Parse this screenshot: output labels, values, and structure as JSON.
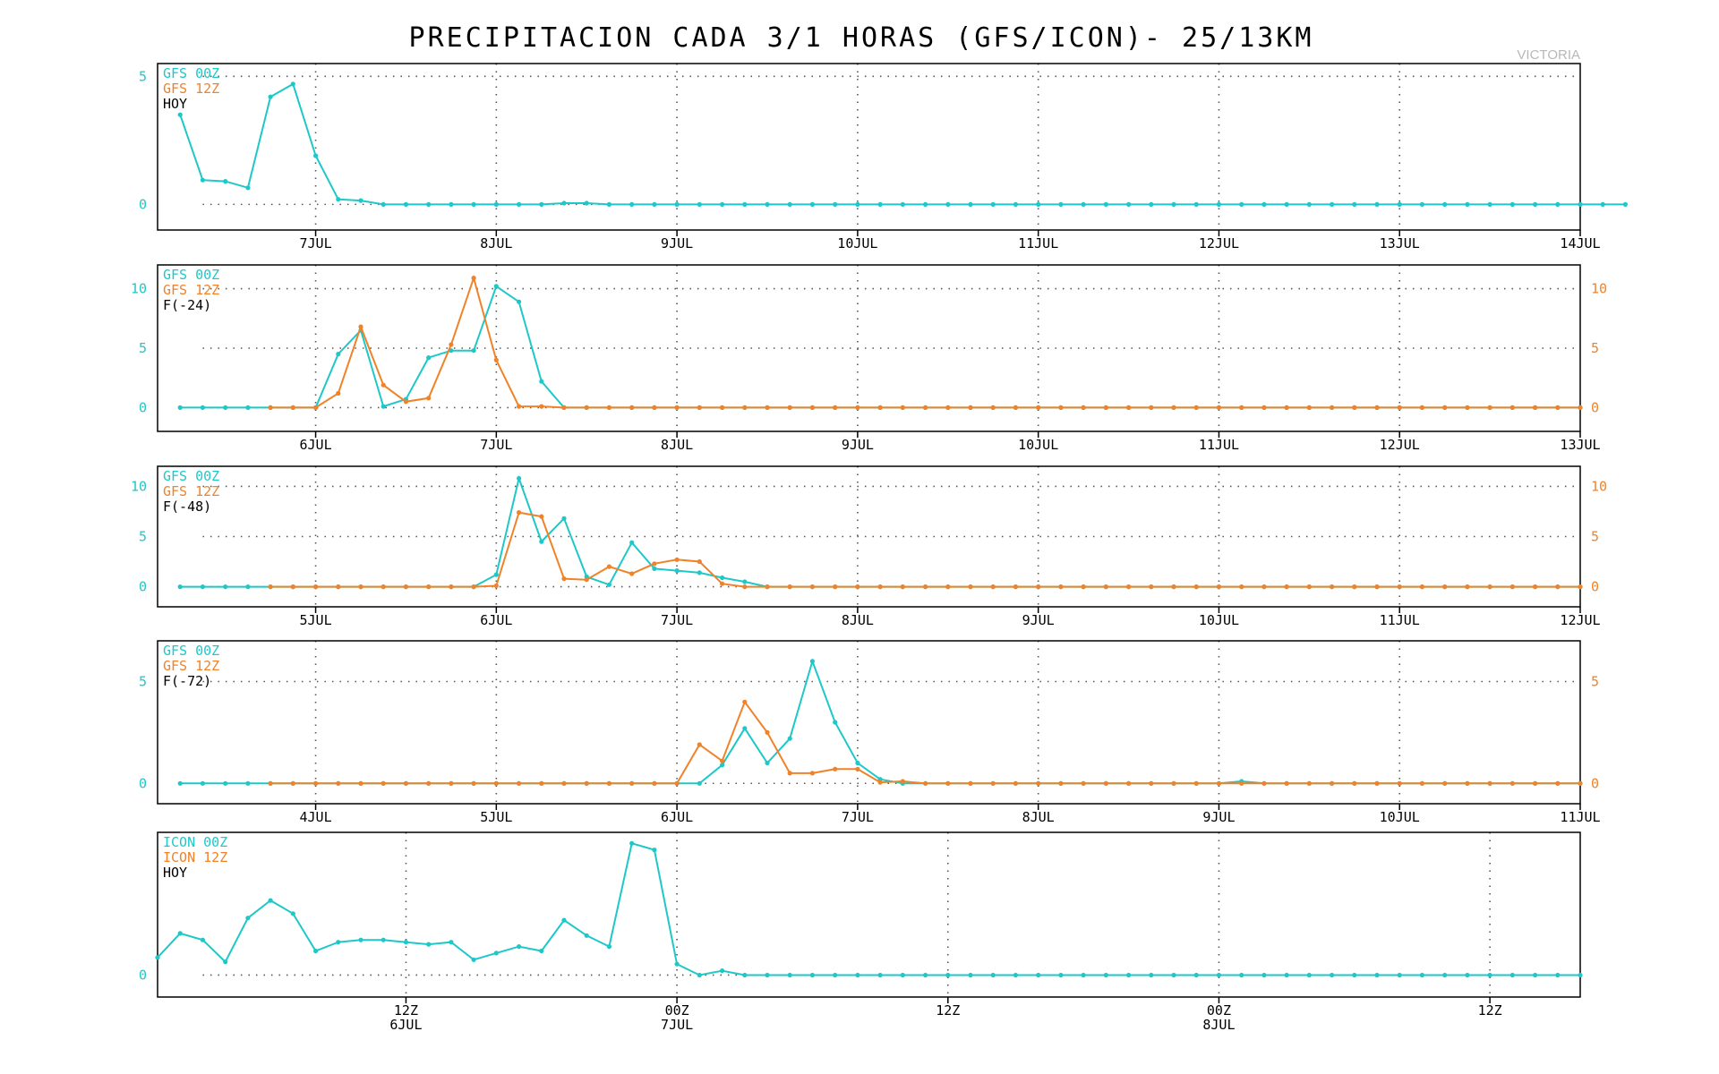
{
  "title": "PRECIPITACION CADA 3/1 HORAS (GFS/ICON)- 25/13KM",
  "station": "VICTORIA",
  "colors": {
    "series_a": "#1ec8c8",
    "series_b": "#f08228",
    "text": "#000000"
  },
  "chart_data": [
    {
      "type": "line",
      "legend": [
        "GFS 00Z",
        "GFS 12Z",
        "HOY"
      ],
      "x_unit": "day offset from 7JUL 00Z (3-hour steps)",
      "xlim": [
        -0.875,
        7
      ],
      "ylim": [
        -1,
        5.5
      ],
      "yticks_left": [
        0,
        5
      ],
      "yticks_right": [],
      "xticks": [
        {
          "x": 0,
          "label": "7JUL"
        },
        {
          "x": 1,
          "label": "8JUL"
        },
        {
          "x": 2,
          "label": "9JUL"
        },
        {
          "x": 3,
          "label": "10JUL"
        },
        {
          "x": 4,
          "label": "11JUL"
        },
        {
          "x": 5,
          "label": "12JUL"
        },
        {
          "x": 6,
          "label": "13JUL"
        },
        {
          "x": 7,
          "label": "14JUL"
        }
      ],
      "xgrid": [
        0,
        1,
        2,
        3,
        4,
        5,
        6
      ],
      "series": [
        {
          "name": "GFS 00Z",
          "color": "series_a",
          "x0": -0.75,
          "dx": 0.125,
          "values": [
            3.5,
            0.95,
            0.9,
            0.65,
            4.2,
            4.7,
            1.9,
            0.2,
            0.15,
            0,
            0,
            0,
            0,
            0,
            0,
            0,
            0,
            0.05,
            0.05,
            0,
            0,
            0,
            0,
            0,
            0,
            0,
            0,
            0,
            0,
            0,
            0,
            0,
            0,
            0,
            0,
            0,
            0,
            0,
            0,
            0,
            0,
            0,
            0,
            0,
            0,
            0,
            0,
            0,
            0,
            0,
            0,
            0,
            0,
            0,
            0,
            0,
            0,
            0,
            0,
            0,
            0,
            0,
            0,
            0,
            0
          ]
        }
      ]
    },
    {
      "type": "line",
      "legend": [
        "GFS 00Z",
        "GFS 12Z",
        "F(-24)"
      ],
      "x_unit": "day offset from 6JUL 00Z (3-hour steps)",
      "xlim": [
        -0.875,
        7
      ],
      "ylim": [
        -2,
        12
      ],
      "yticks_left": [
        0,
        5,
        10
      ],
      "yticks_right": [
        0,
        5,
        10
      ],
      "xticks": [
        {
          "x": 0,
          "label": "6JUL"
        },
        {
          "x": 1,
          "label": "7JUL"
        },
        {
          "x": 2,
          "label": "8JUL"
        },
        {
          "x": 3,
          "label": "9JUL"
        },
        {
          "x": 4,
          "label": "10JUL"
        },
        {
          "x": 5,
          "label": "11JUL"
        },
        {
          "x": 6,
          "label": "12JUL"
        },
        {
          "x": 7,
          "label": "13JUL"
        }
      ],
      "xgrid": [
        0,
        1,
        2,
        3,
        4,
        5,
        6
      ],
      "series": [
        {
          "name": "GFS 00Z",
          "color": "series_a",
          "x0": -0.75,
          "dx": 0.125,
          "values": [
            0,
            0,
            0,
            0,
            0,
            0,
            0,
            4.5,
            6.5,
            0.1,
            0.7,
            4.2,
            4.8,
            4.8,
            10.2,
            8.9,
            2.2,
            0,
            0,
            0,
            0,
            0,
            0,
            0,
            0,
            0,
            0,
            0,
            0,
            0,
            0,
            0,
            0,
            0,
            0,
            0,
            0,
            0,
            0,
            0,
            0,
            0,
            0,
            0,
            0,
            0,
            0,
            0,
            0,
            0,
            0,
            0,
            0,
            0,
            0,
            0,
            0,
            0,
            0,
            0,
            0,
            0,
            0
          ]
        },
        {
          "name": "GFS 12Z",
          "color": "series_b",
          "x0": -0.25,
          "dx": 0.125,
          "values": [
            0,
            0,
            0,
            1.2,
            6.8,
            1.9,
            0.5,
            0.8,
            5.3,
            10.9,
            4.0,
            0.1,
            0.1,
            0,
            0,
            0,
            0,
            0,
            0,
            0,
            0,
            0,
            0,
            0,
            0,
            0,
            0,
            0,
            0,
            0,
            0,
            0,
            0,
            0,
            0,
            0,
            0,
            0,
            0,
            0,
            0,
            0,
            0,
            0,
            0,
            0,
            0,
            0,
            0,
            0,
            0,
            0,
            0,
            0,
            0,
            0,
            0,
            0,
            0
          ]
        }
      ]
    },
    {
      "type": "line",
      "legend": [
        "GFS 00Z",
        "GFS 12Z",
        "F(-48)"
      ],
      "x_unit": "day offset from 5JUL 00Z (3-hour steps)",
      "xlim": [
        -0.875,
        7
      ],
      "ylim": [
        -2,
        12
      ],
      "yticks_left": [
        0,
        5,
        10
      ],
      "yticks_right": [
        0,
        5,
        10
      ],
      "xticks": [
        {
          "x": 0,
          "label": "5JUL"
        },
        {
          "x": 1,
          "label": "6JUL"
        },
        {
          "x": 2,
          "label": "7JUL"
        },
        {
          "x": 3,
          "label": "8JUL"
        },
        {
          "x": 4,
          "label": "9JUL"
        },
        {
          "x": 5,
          "label": "10JUL"
        },
        {
          "x": 6,
          "label": "11JUL"
        },
        {
          "x": 7,
          "label": "12JUL"
        }
      ],
      "xgrid": [
        0,
        1,
        2,
        3,
        4,
        5,
        6
      ],
      "series": [
        {
          "name": "GFS 00Z",
          "color": "series_a",
          "x0": -0.75,
          "dx": 0.125,
          "values": [
            0,
            0,
            0,
            0,
            0,
            0,
            0,
            0,
            0,
            0,
            0,
            0,
            0,
            0,
            1.2,
            10.8,
            4.5,
            6.8,
            1.0,
            0.2,
            4.4,
            1.8,
            1.6,
            1.4,
            0.9,
            0.5,
            0,
            0,
            0,
            0,
            0,
            0,
            0,
            0,
            0,
            0,
            0,
            0,
            0,
            0,
            0,
            0,
            0,
            0,
            0,
            0,
            0,
            0,
            0,
            0,
            0,
            0,
            0,
            0,
            0,
            0,
            0,
            0,
            0,
            0,
            0,
            0,
            0
          ]
        },
        {
          "name": "GFS 12Z",
          "color": "series_b",
          "x0": -0.25,
          "dx": 0.125,
          "values": [
            0,
            0,
            0,
            0,
            0,
            0,
            0,
            0,
            0,
            0,
            0.1,
            7.4,
            7.0,
            0.8,
            0.7,
            2.0,
            1.3,
            2.3,
            2.7,
            2.5,
            0.3,
            0,
            0,
            0,
            0,
            0,
            0,
            0,
            0,
            0,
            0,
            0,
            0,
            0,
            0,
            0,
            0,
            0,
            0,
            0,
            0,
            0,
            0,
            0,
            0,
            0,
            0,
            0,
            0,
            0,
            0,
            0,
            0,
            0,
            0,
            0,
            0,
            0,
            0
          ]
        }
      ]
    },
    {
      "type": "line",
      "legend": [
        "GFS 00Z",
        "GFS 12Z",
        "F(-72)"
      ],
      "x_unit": "day offset from 4JUL 00Z (3-hour steps)",
      "xlim": [
        -0.875,
        7
      ],
      "ylim": [
        -1,
        7
      ],
      "yticks_left": [
        0,
        5
      ],
      "yticks_right": [
        0,
        5
      ],
      "xticks": [
        {
          "x": 0,
          "label": "4JUL"
        },
        {
          "x": 1,
          "label": "5JUL"
        },
        {
          "x": 2,
          "label": "6JUL"
        },
        {
          "x": 3,
          "label": "7JUL"
        },
        {
          "x": 4,
          "label": "8JUL"
        },
        {
          "x": 5,
          "label": "9JUL"
        },
        {
          "x": 6,
          "label": "10JUL"
        },
        {
          "x": 7,
          "label": "11JUL"
        }
      ],
      "xgrid": [
        0,
        1,
        2,
        3,
        4,
        5,
        6
      ],
      "series": [
        {
          "name": "GFS 00Z",
          "color": "series_a",
          "x0": -0.75,
          "dx": 0.125,
          "values": [
            0,
            0,
            0,
            0,
            0,
            0,
            0,
            0,
            0,
            0,
            0,
            0,
            0,
            0,
            0,
            0,
            0,
            0,
            0,
            0,
            0,
            0,
            0,
            0,
            0.9,
            2.7,
            1.0,
            2.2,
            6.0,
            3.0,
            1.0,
            0.2,
            0,
            0,
            0,
            0,
            0,
            0,
            0,
            0,
            0,
            0,
            0,
            0,
            0,
            0,
            0,
            0.1,
            0,
            0,
            0,
            0,
            0,
            0,
            0,
            0,
            0,
            0,
            0,
            0,
            0,
            0,
            0
          ]
        },
        {
          "name": "GFS 12Z",
          "color": "series_b",
          "x0": -0.25,
          "dx": 0.125,
          "values": [
            0,
            0,
            0,
            0,
            0,
            0,
            0,
            0,
            0,
            0,
            0,
            0,
            0,
            0,
            0,
            0,
            0,
            0,
            0,
            1.9,
            1.1,
            4.0,
            2.5,
            0.5,
            0.5,
            0.7,
            0.7,
            0.05,
            0.1,
            0,
            0,
            0,
            0,
            0,
            0,
            0,
            0,
            0,
            0,
            0,
            0,
            0,
            0,
            0,
            0,
            0,
            0,
            0,
            0,
            0,
            0,
            0,
            0,
            0,
            0,
            0,
            0,
            0,
            0
          ]
        }
      ]
    },
    {
      "type": "line",
      "legend": [
        "ICON 00Z",
        "ICON 12Z",
        "HOY"
      ],
      "x_unit": "hours from 7JUL 00Z (1-hour steps)",
      "xlim": [
        -23,
        40
      ],
      "ylim": [
        -1,
        6.5
      ],
      "yticks_left": [
        0
      ],
      "yticks_right": [],
      "xticks": [
        {
          "x": -12,
          "label": "12Z",
          "sub": "6JUL"
        },
        {
          "x": 0,
          "label": "00Z",
          "sub": "7JUL"
        },
        {
          "x": 12,
          "label": "12Z",
          "sub": ""
        },
        {
          "x": 24,
          "label": "00Z",
          "sub": "8JUL"
        },
        {
          "x": 36,
          "label": "12Z",
          "sub": ""
        }
      ],
      "xgrid": [
        -12,
        0,
        12,
        24,
        36
      ],
      "series": [
        {
          "name": "ICON 00Z",
          "color": "series_a",
          "x0": -23,
          "dx": 1,
          "values": [
            0.8,
            1.9,
            1.6,
            0.6,
            2.6,
            3.4,
            2.8,
            1.1,
            1.5,
            1.6,
            1.6,
            1.5,
            1.4,
            1.5,
            0.7,
            1.0,
            1.3,
            1.1,
            2.5,
            1.8,
            1.3,
            6.0,
            5.7,
            0.5,
            0,
            0.2,
            0,
            0,
            0,
            0,
            0,
            0,
            0,
            0,
            0,
            0,
            0,
            0,
            0,
            0,
            0,
            0,
            0,
            0,
            0,
            0,
            0,
            0,
            0,
            0,
            0,
            0,
            0,
            0,
            0,
            0,
            0,
            0,
            0,
            0,
            0,
            0,
            0,
            0
          ]
        }
      ]
    }
  ]
}
